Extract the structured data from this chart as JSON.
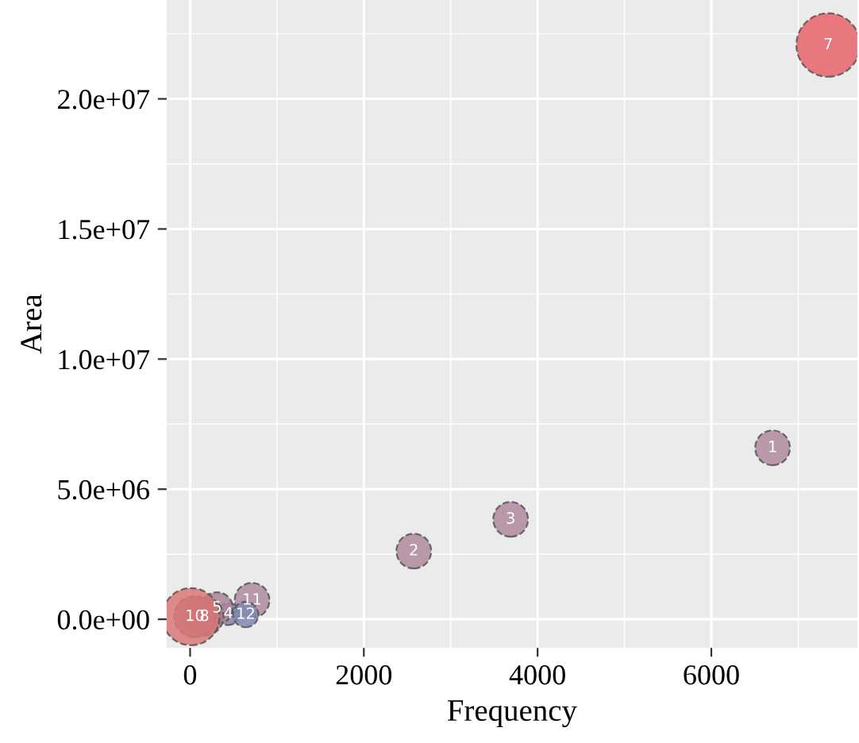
{
  "chart_data": {
    "type": "bubble",
    "xlabel": "Frequency",
    "ylabel": "Area",
    "x": [
      6705,
      2575,
      3690,
      440,
      310,
      7345,
      165,
      55,
      713,
      640,
      10
    ],
    "values": [
      6590000,
      2620000,
      3840000,
      200000,
      430000,
      22070000,
      100000,
      100000,
      730000,
      180000,
      100000
    ],
    "sizes": [
      0.3,
      0.3,
      0.3,
      0.12,
      0.25,
      1,
      0.36,
      0.42,
      0.3,
      0.16,
      0.81
    ],
    "colors": [
      "#b08a9e",
      "#b08a9e",
      "#b08a9e",
      "#8a80a8",
      "#a88596",
      "#e8636b",
      "#a8788e",
      "#b0707e",
      "#b08a9e",
      "#7f88b0",
      "#d87878"
    ],
    "annotations": [
      {
        "text": "1",
        "x": 6705,
        "y": 6590000
      },
      {
        "text": "2",
        "x": 2575,
        "y": 2620000
      },
      {
        "text": "3",
        "x": 3690,
        "y": 3840000
      },
      {
        "text": "4",
        "x": 440,
        "y": 200000
      },
      {
        "text": "5",
        "x": 310,
        "y": 430000
      },
      {
        "text": "7",
        "x": 7345,
        "y": 22070000
      },
      {
        "text": "8",
        "x": 165,
        "y": 100000
      },
      {
        "text": "10",
        "x": 55,
        "y": 100000
      },
      {
        "text": "11",
        "x": 713,
        "y": 730000
      },
      {
        "text": "12",
        "x": 640,
        "y": 180000
      }
    ],
    "xlim": [
      -270,
      7680
    ],
    "ylim": [
      -1100000,
      23800000
    ],
    "xticks": [
      0,
      2000,
      4000,
      6000
    ],
    "yticks": [
      {
        "value": 0,
        "label": "0.0e+00"
      },
      {
        "value": 5000000,
        "label": "5.0e+06"
      },
      {
        "value": 10000000,
        "label": "1.0e+07"
      },
      {
        "value": 15000000,
        "label": "1.5e+07"
      },
      {
        "value": 20000000,
        "label": "2.0e+07"
      }
    ],
    "grid": true
  }
}
